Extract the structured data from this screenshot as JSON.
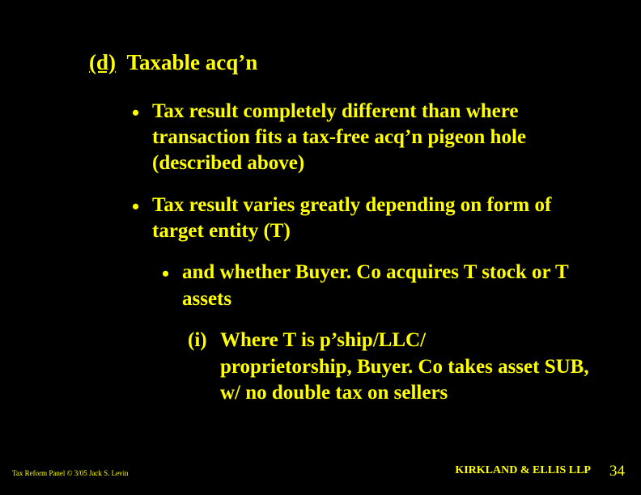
{
  "colors": {
    "background": "#000000",
    "text": "#ffff00"
  },
  "typography": {
    "family": "Times New Roman",
    "heading_size_pt": 27,
    "body_size_pt": 25,
    "footer_left_size_pt": 9,
    "footer_right_size_pt": 14,
    "pagenum_size_pt": 19,
    "weight": "bold"
  },
  "heading": {
    "marker": "(d)",
    "text": "Taxable acq’n"
  },
  "bullets_level1": [
    "Tax result completely different than where transaction fits a tax-free acq’n pigeon hole (described above)",
    "Tax result varies greatly depending on form of target entity (T)"
  ],
  "bullets_level2": [
    "and whether Buyer. Co acquires T stock or T assets"
  ],
  "sub_items": [
    {
      "marker": "(i)",
      "line1": "Where T is p’ship/LLC/",
      "line2": "proprietorship, Buyer. Co takes asset SUB, w/ no double tax on sellers"
    }
  ],
  "footer": {
    "left": "Tax Reform Panel © 3/05 Jack S. Levin",
    "right": "KIRKLAND & ELLIS LLP",
    "page": "34"
  }
}
